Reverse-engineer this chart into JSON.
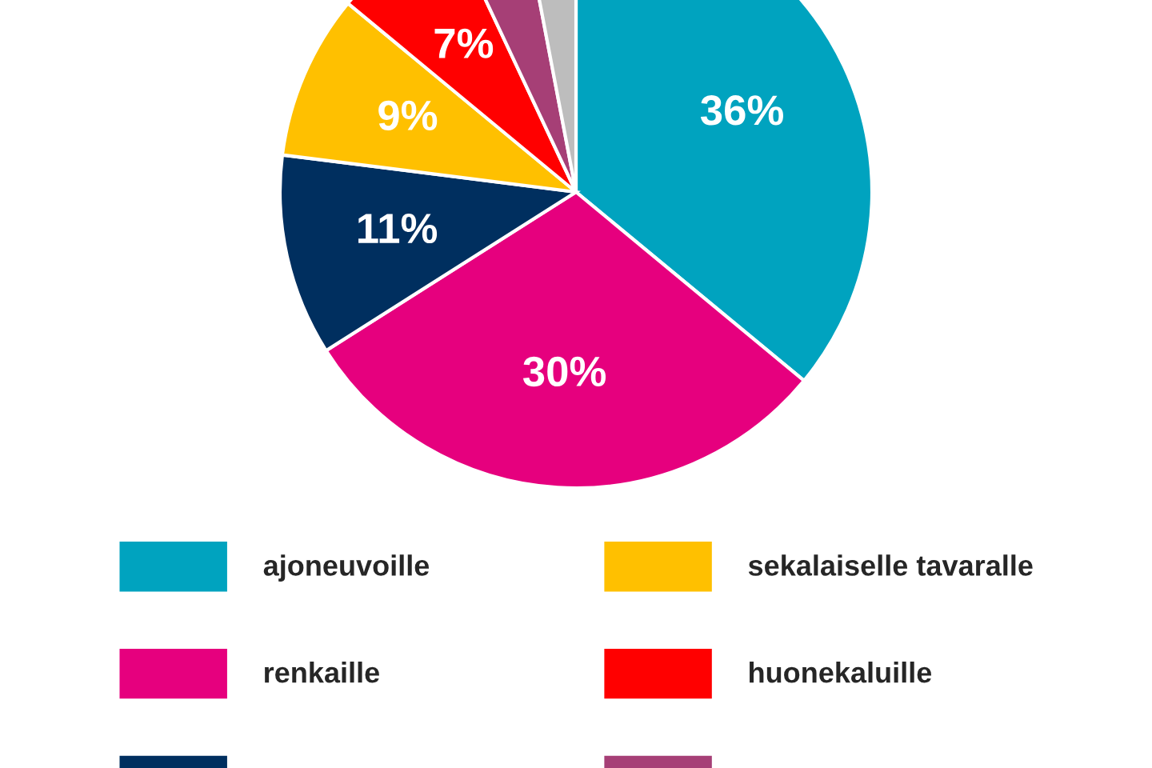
{
  "chart_data": {
    "type": "pie",
    "categories": [
      "ajoneuvoille",
      "renkaille",
      null,
      "sekalaiselle tavaralle",
      "huonekaluille",
      null,
      null
    ],
    "values": [
      36,
      30,
      11,
      9,
      7,
      4,
      3
    ],
    "colors": [
      "#00a3bf",
      "#e6007e",
      "#002f5f",
      "#ffc000",
      "#ff0000",
      "#a63f76",
      "#bdbdbd"
    ],
    "value_labels": [
      "36%",
      "30%",
      "11%",
      "9%",
      "7%",
      null,
      null
    ],
    "legend": "bottom"
  }
}
